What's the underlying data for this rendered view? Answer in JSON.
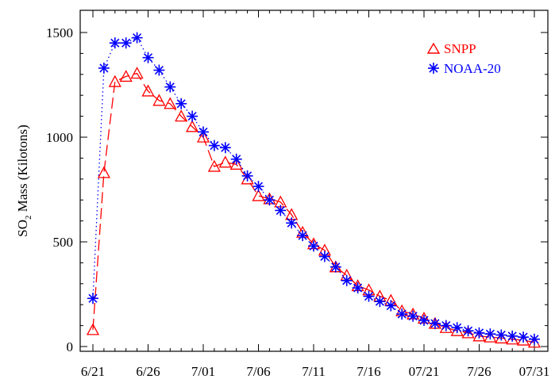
{
  "chart_data": {
    "type": "line",
    "ylabel_main": "SO",
    "ylabel_sub": "2",
    "ylabel_rest": " Mass (Kilotons)",
    "xlabel": "",
    "xlim": [
      0,
      40
    ],
    "ylim": [
      0,
      1500
    ],
    "grid": false,
    "legend_position": "top-right",
    "x_ticks": [
      {
        "x": 0,
        "label": "6/21"
      },
      {
        "x": 5,
        "label": "6/26"
      },
      {
        "x": 10,
        "label": "7/01"
      },
      {
        "x": 15,
        "label": "7/06"
      },
      {
        "x": 20,
        "label": "7/11"
      },
      {
        "x": 25,
        "label": "7/16"
      },
      {
        "x": 30,
        "label": "07/21"
      },
      {
        "x": 35,
        "label": "7/26"
      },
      {
        "x": 40,
        "label": "07/31"
      }
    ],
    "y_ticks": [
      {
        "y": 0,
        "label": "0"
      },
      {
        "y": 500,
        "label": "500"
      },
      {
        "y": 1000,
        "label": "1000"
      },
      {
        "y": 1500,
        "label": "1500"
      }
    ],
    "series": [
      {
        "name": "SNPP",
        "color": "#ff0000",
        "marker": "triangle",
        "line_style": "long-dash",
        "x": [
          0,
          1,
          2,
          3,
          4,
          5,
          6,
          7,
          8,
          9,
          10,
          11,
          12,
          13,
          14,
          15,
          16,
          17,
          18,
          19,
          20,
          21,
          22,
          23,
          24,
          25,
          26,
          27,
          28,
          29,
          30,
          31,
          32,
          33,
          34,
          35,
          36,
          37,
          38,
          39,
          40
        ],
        "values": [
          80,
          830,
          1265,
          1290,
          1305,
          1220,
          1175,
          1160,
          1100,
          1050,
          1000,
          860,
          880,
          870,
          800,
          720,
          705,
          690,
          630,
          545,
          490,
          460,
          380,
          340,
          290,
          270,
          240,
          220,
          170,
          155,
          135,
          110,
          90,
          75,
          65,
          50,
          45,
          40,
          35,
          30,
          20
        ]
      },
      {
        "name": "NOAA-20",
        "color": "#0000ff",
        "marker": "asterisk",
        "line_style": "dotted",
        "x": [
          0,
          1,
          2,
          3,
          4,
          5,
          6,
          7,
          8,
          9,
          10,
          11,
          12,
          13,
          14,
          15,
          16,
          17,
          18,
          19,
          20,
          21,
          22,
          23,
          24,
          25,
          26,
          27,
          28,
          29,
          30,
          31,
          32,
          33,
          34,
          35,
          36,
          37,
          38,
          39,
          40
        ],
        "values": [
          230,
          1330,
          1450,
          1450,
          1475,
          1380,
          1320,
          1240,
          1160,
          1100,
          1025,
          960,
          950,
          895,
          815,
          765,
          700,
          650,
          590,
          530,
          480,
          430,
          380,
          315,
          280,
          240,
          215,
          195,
          155,
          145,
          125,
          110,
          100,
          90,
          75,
          65,
          60,
          55,
          50,
          45,
          35
        ]
      }
    ]
  }
}
